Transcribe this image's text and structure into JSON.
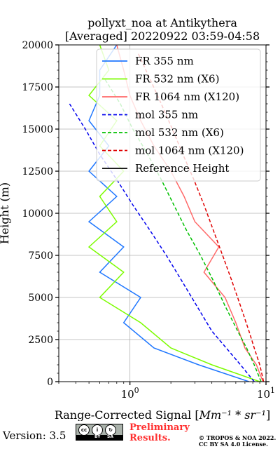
{
  "chart_data": {
    "type": "line",
    "title": [
      "pollyxt_noa at Antikythera",
      "[Averaged] 20220922 03:59-04:58"
    ],
    "xlabel": "Range-Corrected Signal [",
    "xlabel_unit": "Mm⁻¹ * sr⁻¹",
    "xlabel_end": "]",
    "ylabel": "Height (m)",
    "xscale": "log",
    "xlim": [
      0.3,
      10
    ],
    "ylim": [
      0,
      20000
    ],
    "xticks": [
      {
        "value": 1,
        "base": "10",
        "exp": "0"
      },
      {
        "value": 10,
        "base": "10",
        "exp": "1"
      }
    ],
    "yticks": [
      0,
      2500,
      5000,
      7500,
      10000,
      12500,
      15000,
      17500,
      20000
    ],
    "ytick_labels": [
      "0",
      "2500",
      "5000",
      "7500",
      "10000",
      "12500",
      "15000",
      "17500",
      "20000"
    ],
    "grid": true,
    "legend_position": "top-right",
    "series": [
      {
        "name": "FR 355 nm",
        "color": "#1f77ff",
        "style": "solid",
        "x": [
          7.5,
          3.2,
          1.5,
          0.9,
          1.2,
          0.6,
          0.9,
          0.5,
          0.8,
          0.5,
          0.7,
          0.5,
          0.6,
          0.6,
          0.8
        ],
        "y": [
          0,
          1000,
          2000,
          3500,
          5000,
          6500,
          8000,
          9500,
          11000,
          12500,
          14000,
          15500,
          17000,
          18500,
          20000
        ]
      },
      {
        "name": "FR 532 nm (X6)",
        "color": "#7cfc00",
        "style": "solid",
        "x": [
          9.0,
          4.0,
          2.0,
          1.2,
          0.6,
          0.9,
          0.5,
          0.8,
          0.6,
          0.9,
          0.6,
          0.8,
          0.5,
          0.7,
          0.6
        ],
        "y": [
          0,
          1000,
          2000,
          3500,
          5000,
          6500,
          8000,
          9500,
          11000,
          12500,
          14000,
          15500,
          17000,
          18500,
          20000
        ]
      },
      {
        "name": "FR 1064 nm (X120)",
        "color": "#ff6a6a",
        "style": "solid",
        "x": [
          9.5,
          8.5,
          7.0,
          6.0,
          5.0,
          3.5,
          4.5,
          3.0,
          2.5,
          2.0,
          1.5,
          1.2,
          1.0,
          0.9,
          0.8
        ],
        "y": [
          0,
          1000,
          2000,
          3500,
          5000,
          6500,
          8000,
          9500,
          11000,
          12500,
          14000,
          15500,
          17000,
          18500,
          20000
        ]
      },
      {
        "name": "mol 355 nm",
        "color": "#0000ee",
        "style": "dashed",
        "x": [
          8.2,
          6.5,
          5.1,
          4.0,
          3.1,
          2.4,
          1.85,
          1.4,
          1.05,
          0.8,
          0.6,
          0.47,
          0.36
        ],
        "y": [
          0,
          1000,
          2000,
          3000,
          4500,
          6000,
          7500,
          9000,
          10500,
          12000,
          13500,
          15000,
          16500
        ]
      },
      {
        "name": "mol 532 nm (X6)",
        "color": "#00c000",
        "style": "dashed",
        "x": [
          9.2,
          8.2,
          7.2,
          6.2,
          5.0,
          4.1,
          3.3,
          2.6,
          2.1,
          1.7,
          1.35,
          1.05,
          0.85,
          0.65
        ],
        "y": [
          0,
          1000,
          2000,
          3000,
          4500,
          6000,
          7500,
          9000,
          10500,
          12000,
          13500,
          15000,
          16500,
          18000
        ]
      },
      {
        "name": "mol 1064 nm (X120)",
        "color": "#e00000",
        "style": "dashed",
        "x": [
          9.6,
          9.0,
          8.2,
          7.5,
          6.5,
          5.6,
          4.8,
          4.1,
          3.5,
          2.95,
          2.45,
          2.05,
          1.7,
          1.4,
          1.15
        ],
        "y": [
          0,
          1000,
          2000,
          3000,
          4500,
          6000,
          7500,
          9000,
          10500,
          12000,
          13500,
          15000,
          16500,
          18000,
          19500
        ]
      },
      {
        "name": "Reference Height",
        "color": "#000000",
        "style": "solid",
        "x": [],
        "y": []
      }
    ]
  },
  "footer": {
    "version": "Version: 3.5",
    "license_badge": {
      "top": "cc  by  sa",
      "by": "BY",
      "sa": "SA"
    },
    "preliminary_line1": "Preliminary",
    "preliminary_line2": "Results.",
    "copyright_line1": "© TROPOS & NOA 2022.",
    "copyright_line2": "CC BY SA 4.0 License."
  }
}
